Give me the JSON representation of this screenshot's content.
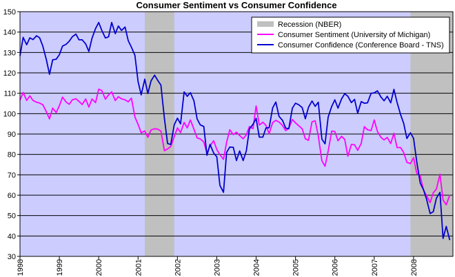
{
  "chart_data": {
    "type": "line",
    "title": "Consumer Sentiment vs Consumer Confidence",
    "xlabel": "",
    "ylabel": "",
    "xlim": [
      1998.0,
      2009.0
    ],
    "ylim": [
      30,
      150
    ],
    "y_ticks": [
      30,
      40,
      50,
      60,
      70,
      80,
      90,
      100,
      110,
      120,
      130,
      140,
      150
    ],
    "x_tick_labels": [
      "1998",
      "1999",
      "2000",
      "2001",
      "2002",
      "2003",
      "2004",
      "2005",
      "2006",
      "2007",
      "2008"
    ],
    "x_tick_positions": [
      1998,
      1999,
      2000,
      2001,
      2002,
      2003,
      2004,
      2005,
      2006,
      2007,
      2008
    ],
    "grid": "horizontal",
    "plot_background": "#ccccff",
    "legend_position": "top-right",
    "recessions": [
      {
        "start": 2001.17,
        "end": 2001.92
      },
      {
        "start": 2007.92,
        "end": 2009.0
      }
    ],
    "recession_legend": {
      "name": "Recession (NBER)",
      "color": "#c0c0c0"
    },
    "series": [
      {
        "name": "Consumer Sentiment (University of Michigan)",
        "color": "#ff00ff",
        "x": [
          1998.0,
          1998.08,
          1998.17,
          1998.25,
          1998.33,
          1998.42,
          1998.5,
          1998.58,
          1998.67,
          1998.75,
          1998.83,
          1998.92,
          1999.0,
          1999.08,
          1999.17,
          1999.25,
          1999.33,
          1999.42,
          1999.5,
          1999.58,
          1999.67,
          1999.75,
          1999.83,
          1999.92,
          2000.0,
          2000.08,
          2000.17,
          2000.25,
          2000.33,
          2000.42,
          2000.5,
          2000.58,
          2000.67,
          2000.75,
          2000.83,
          2000.92,
          2001.0,
          2001.08,
          2001.17,
          2001.25,
          2001.33,
          2001.42,
          2001.5,
          2001.58,
          2001.67,
          2001.75,
          2001.83,
          2001.92,
          2002.0,
          2002.08,
          2002.17,
          2002.25,
          2002.33,
          2002.42,
          2002.5,
          2002.58,
          2002.67,
          2002.75,
          2002.83,
          2002.92,
          2003.0,
          2003.08,
          2003.17,
          2003.25,
          2003.33,
          2003.42,
          2003.5,
          2003.58,
          2003.67,
          2003.75,
          2003.83,
          2003.92,
          2004.0,
          2004.08,
          2004.17,
          2004.25,
          2004.33,
          2004.42,
          2004.5,
          2004.58,
          2004.67,
          2004.75,
          2004.83,
          2004.92,
          2005.0,
          2005.08,
          2005.17,
          2005.25,
          2005.33,
          2005.42,
          2005.5,
          2005.58,
          2005.67,
          2005.75,
          2005.83,
          2005.92,
          2006.0,
          2006.08,
          2006.17,
          2006.25,
          2006.33,
          2006.42,
          2006.5,
          2006.58,
          2006.67,
          2006.75,
          2006.83,
          2006.92,
          2007.0,
          2007.08,
          2007.17,
          2007.25,
          2007.33,
          2007.42,
          2007.5,
          2007.58,
          2007.67,
          2007.75,
          2007.83,
          2007.92,
          2008.0,
          2008.08,
          2008.17,
          2008.25,
          2008.33,
          2008.42,
          2008.5,
          2008.58,
          2008.67,
          2008.75,
          2008.83,
          2008.92
        ],
        "values": [
          106.6,
          110.4,
          106.5,
          108.7,
          106.5,
          105.6,
          105.2,
          104.4,
          100.9,
          97.4,
          102.7,
          100.5,
          103.9,
          108.1,
          105.7,
          104.6,
          106.8,
          107.3,
          106.0,
          104.5,
          107.2,
          103.2,
          107.2,
          105.4,
          112.0,
          111.3,
          107.1,
          109.2,
          110.7,
          106.4,
          108.3,
          107.3,
          106.8,
          105.8,
          107.6,
          98.4,
          94.7,
          90.6,
          91.5,
          88.4,
          92.0,
          92.6,
          92.4,
          91.5,
          81.8,
          82.7,
          83.9,
          88.8,
          93.0,
          90.7,
          95.7,
          93.0,
          96.9,
          92.4,
          88.1,
          87.6,
          86.1,
          80.6,
          84.2,
          86.7,
          82.4,
          79.9,
          77.6,
          86.0,
          92.1,
          89.7,
          90.9,
          89.3,
          87.7,
          89.6,
          93.7,
          92.6,
          103.8,
          94.4,
          95.8,
          94.2,
          90.2,
          95.6,
          96.7,
          95.9,
          94.2,
          91.7,
          92.8,
          97.1,
          95.5,
          94.1,
          92.6,
          87.7,
          86.9,
          96.0,
          96.5,
          89.1,
          76.9,
          74.2,
          81.6,
          91.5,
          91.2,
          86.7,
          88.9,
          87.4,
          79.1,
          84.9,
          84.7,
          82.0,
          85.4,
          93.6,
          92.1,
          91.7,
          96.9,
          91.3,
          88.4,
          87.1,
          88.3,
          85.3,
          90.4,
          83.4,
          83.4,
          80.9,
          76.1,
          75.5,
          78.4,
          70.8,
          69.5,
          62.6,
          59.8,
          56.4,
          61.2,
          63.0,
          70.3,
          57.6,
          55.3,
          60.1
        ]
      },
      {
        "name": "Consumer Confidence (Conference Board - TNS)",
        "color": "#0000cc",
        "x": [
          1998.0,
          1998.08,
          1998.17,
          1998.25,
          1998.33,
          1998.42,
          1998.5,
          1998.58,
          1998.67,
          1998.75,
          1998.83,
          1998.92,
          1999.0,
          1999.08,
          1999.17,
          1999.25,
          1999.33,
          1999.42,
          1999.5,
          1999.58,
          1999.67,
          1999.75,
          1999.83,
          1999.92,
          2000.0,
          2000.08,
          2000.17,
          2000.25,
          2000.33,
          2000.42,
          2000.5,
          2000.58,
          2000.67,
          2000.75,
          2000.83,
          2000.92,
          2001.0,
          2001.08,
          2001.17,
          2001.25,
          2001.33,
          2001.42,
          2001.5,
          2001.58,
          2001.67,
          2001.75,
          2001.83,
          2001.92,
          2002.0,
          2002.08,
          2002.17,
          2002.25,
          2002.33,
          2002.42,
          2002.5,
          2002.58,
          2002.67,
          2002.75,
          2002.83,
          2002.92,
          2003.0,
          2003.08,
          2003.17,
          2003.25,
          2003.33,
          2003.42,
          2003.5,
          2003.58,
          2003.67,
          2003.75,
          2003.83,
          2003.92,
          2004.0,
          2004.08,
          2004.17,
          2004.25,
          2004.33,
          2004.42,
          2004.5,
          2004.58,
          2004.67,
          2004.75,
          2004.83,
          2004.92,
          2005.0,
          2005.08,
          2005.17,
          2005.25,
          2005.33,
          2005.42,
          2005.5,
          2005.58,
          2005.67,
          2005.75,
          2005.83,
          2005.92,
          2006.0,
          2006.08,
          2006.17,
          2006.25,
          2006.33,
          2006.42,
          2006.5,
          2006.58,
          2006.67,
          2006.75,
          2006.83,
          2006.92,
          2007.0,
          2007.08,
          2007.17,
          2007.25,
          2007.33,
          2007.42,
          2007.5,
          2007.58,
          2007.67,
          2007.75,
          2007.83,
          2007.92,
          2008.0,
          2008.08,
          2008.17,
          2008.25,
          2008.33,
          2008.42,
          2008.5,
          2008.58,
          2008.67,
          2008.75,
          2008.83,
          2008.92
        ],
        "values": [
          128.3,
          137.4,
          133.8,
          137.2,
          136.3,
          138.2,
          137.2,
          133.1,
          126.4,
          119.3,
          126.4,
          126.7,
          128.9,
          133.1,
          134.0,
          135.5,
          137.7,
          139.0,
          136.2,
          136.2,
          134.2,
          130.5,
          137.0,
          141.7,
          144.7,
          140.8,
          137.1,
          137.7,
          144.7,
          139.2,
          143.0,
          140.8,
          142.5,
          135.8,
          132.6,
          128.6,
          115.7,
          109.2,
          116.9,
          109.9,
          116.1,
          118.9,
          116.3,
          114.0,
          97.6,
          85.3,
          84.9,
          94.6,
          97.8,
          95.0,
          110.7,
          108.5,
          110.3,
          106.3,
          97.4,
          94.5,
          93.7,
          79.6,
          84.9,
          80.7,
          78.8,
          64.8,
          61.4,
          81.0,
          83.6,
          83.5,
          77.0,
          81.7,
          77.0,
          81.7,
          92.5,
          94.8,
          97.7,
          88.5,
          88.5,
          93.0,
          93.1,
          102.8,
          105.7,
          98.7,
          96.7,
          92.9,
          92.6,
          102.7,
          105.1,
          104.4,
          103.0,
          97.5,
          103.1,
          106.2,
          103.6,
          105.6,
          87.5,
          85.2,
          98.3,
          103.6,
          106.8,
          102.7,
          107.2,
          109.8,
          108.5,
          105.4,
          107.0,
          100.2,
          105.9,
          105.1,
          105.3,
          110.0,
          110.2,
          111.2,
          108.2,
          106.3,
          108.5,
          105.3,
          111.9,
          105.6,
          99.5,
          95.2,
          87.8,
          90.6,
          87.9,
          76.4,
          65.9,
          62.8,
          58.1,
          51.0,
          51.9,
          58.5,
          61.4,
          38.8,
          44.7,
          38.0
        ]
      }
    ]
  }
}
